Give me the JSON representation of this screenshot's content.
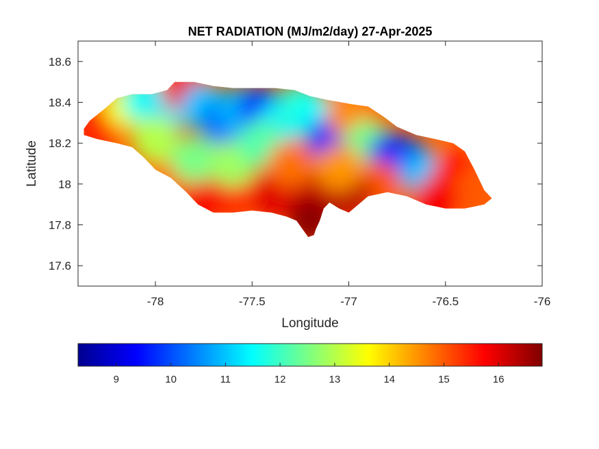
{
  "chart_data": {
    "type": "heatmap",
    "title": "NET RADIATION (MJ/m2/day) 27-Apr-2025",
    "xlabel": "Longitude",
    "ylabel": "Latitude",
    "xlim": [
      -78.4,
      -76
    ],
    "ylim": [
      17.5,
      18.7
    ],
    "x_ticks": [
      -78,
      -77.5,
      -77,
      -76.5,
      -76
    ],
    "y_ticks": [
      17.6,
      17.8,
      18,
      18.2,
      18.4,
      18.6
    ],
    "colorbar": {
      "colormap": "jet",
      "range": [
        8.3,
        16.8
      ],
      "ticks": [
        9,
        10,
        11,
        12,
        13,
        14,
        15,
        16
      ],
      "placement": "bottom"
    },
    "grid": false,
    "region_outline": [
      [
        -78.37,
        18.27
      ],
      [
        -78.34,
        18.31
      ],
      [
        -78.3,
        18.34
      ],
      [
        -78.26,
        18.37
      ],
      [
        -78.2,
        18.42
      ],
      [
        -78.12,
        18.44
      ],
      [
        -78.02,
        18.44
      ],
      [
        -77.94,
        18.46
      ],
      [
        -77.9,
        18.5
      ],
      [
        -77.8,
        18.5
      ],
      [
        -77.7,
        18.48
      ],
      [
        -77.6,
        18.47
      ],
      [
        -77.5,
        18.47
      ],
      [
        -77.38,
        18.47
      ],
      [
        -77.28,
        18.46
      ],
      [
        -77.2,
        18.43
      ],
      [
        -77.1,
        18.41
      ],
      [
        -76.98,
        18.39
      ],
      [
        -76.9,
        18.38
      ],
      [
        -76.82,
        18.33
      ],
      [
        -76.75,
        18.28
      ],
      [
        -76.65,
        18.24
      ],
      [
        -76.55,
        18.22
      ],
      [
        -76.46,
        18.2
      ],
      [
        -76.4,
        18.16
      ],
      [
        -76.35,
        18.07
      ],
      [
        -76.3,
        17.97
      ],
      [
        -76.26,
        17.93
      ],
      [
        -76.3,
        17.9
      ],
      [
        -76.4,
        17.88
      ],
      [
        -76.5,
        17.88
      ],
      [
        -76.6,
        17.9
      ],
      [
        -76.7,
        17.94
      ],
      [
        -76.8,
        17.96
      ],
      [
        -76.9,
        17.94
      ],
      [
        -76.95,
        17.9
      ],
      [
        -77.0,
        17.86
      ],
      [
        -77.05,
        17.88
      ],
      [
        -77.1,
        17.91
      ],
      [
        -77.13,
        17.88
      ],
      [
        -77.15,
        17.82
      ],
      [
        -77.17,
        17.78
      ],
      [
        -77.18,
        17.75
      ],
      [
        -77.21,
        17.74
      ],
      [
        -77.24,
        17.78
      ],
      [
        -77.27,
        17.82
      ],
      [
        -77.32,
        17.84
      ],
      [
        -77.4,
        17.86
      ],
      [
        -77.5,
        17.87
      ],
      [
        -77.6,
        17.86
      ],
      [
        -77.7,
        17.86
      ],
      [
        -77.78,
        17.9
      ],
      [
        -77.84,
        17.96
      ],
      [
        -77.92,
        18.03
      ],
      [
        -78.0,
        18.07
      ],
      [
        -78.06,
        18.13
      ],
      [
        -78.12,
        18.18
      ],
      [
        -78.2,
        18.2
      ],
      [
        -78.3,
        18.22
      ],
      [
        -78.37,
        18.24
      ]
    ],
    "value_field": [
      {
        "x": -78.3,
        "y": 18.28,
        "value": 15.5
      },
      {
        "x": -78.15,
        "y": 18.38,
        "value": 13.5
      },
      {
        "x": -78.05,
        "y": 18.41,
        "value": 11.6
      },
      {
        "x": -77.93,
        "y": 18.38,
        "value": 11.3
      },
      {
        "x": -77.85,
        "y": 18.46,
        "value": 15.8
      },
      {
        "x": -77.75,
        "y": 18.38,
        "value": 11.0
      },
      {
        "x": -77.65,
        "y": 18.3,
        "value": 10.3
      },
      {
        "x": -77.55,
        "y": 18.36,
        "value": 10.9
      },
      {
        "x": -77.45,
        "y": 18.36,
        "value": 9.6
      },
      {
        "x": -77.35,
        "y": 18.3,
        "value": 11.3
      },
      {
        "x": -77.25,
        "y": 18.38,
        "value": 11.8
      },
      {
        "x": -77.15,
        "y": 18.32,
        "value": 11.5
      },
      {
        "x": -77.1,
        "y": 18.22,
        "value": 9.6
      },
      {
        "x": -77.0,
        "y": 18.34,
        "value": 14.6
      },
      {
        "x": -76.9,
        "y": 18.2,
        "value": 12.5
      },
      {
        "x": -76.78,
        "y": 18.14,
        "value": 9.3
      },
      {
        "x": -76.68,
        "y": 18.1,
        "value": 10.0
      },
      {
        "x": -76.6,
        "y": 18.04,
        "value": 11.0
      },
      {
        "x": -76.45,
        "y": 18.05,
        "value": 15.6
      },
      {
        "x": -76.35,
        "y": 17.96,
        "value": 15.0
      },
      {
        "x": -76.55,
        "y": 17.92,
        "value": 15.8
      },
      {
        "x": -76.85,
        "y": 18.0,
        "value": 15.0
      },
      {
        "x": -77.0,
        "y": 17.95,
        "value": 16.3
      },
      {
        "x": -77.2,
        "y": 17.97,
        "value": 16.2
      },
      {
        "x": -77.2,
        "y": 17.82,
        "value": 16.7
      },
      {
        "x": -77.4,
        "y": 17.95,
        "value": 16.0
      },
      {
        "x": -77.6,
        "y": 17.95,
        "value": 15.4
      },
      {
        "x": -77.75,
        "y": 17.95,
        "value": 15.8
      },
      {
        "x": -77.9,
        "y": 18.08,
        "value": 14.8
      },
      {
        "x": -78.0,
        "y": 18.22,
        "value": 13.0
      },
      {
        "x": -77.8,
        "y": 18.12,
        "value": 12.5
      },
      {
        "x": -77.6,
        "y": 18.1,
        "value": 12.8
      },
      {
        "x": -77.45,
        "y": 18.2,
        "value": 12.2
      },
      {
        "x": -77.3,
        "y": 18.1,
        "value": 14.8
      },
      {
        "x": -77.05,
        "y": 18.08,
        "value": 14.5
      }
    ]
  }
}
